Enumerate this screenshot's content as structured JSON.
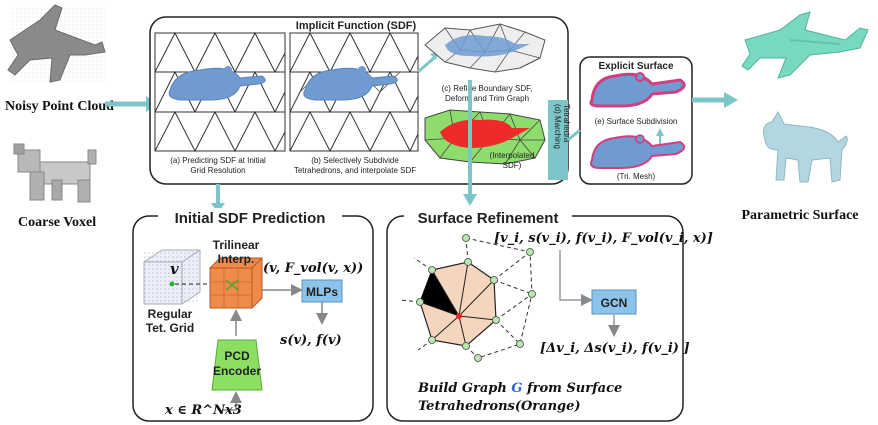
{
  "left": {
    "noisy_label": "Noisy Point Cloud",
    "coarse_label": "Coarse Voxel"
  },
  "right": {
    "parametric_label": "Parametric Surface"
  },
  "implicit": {
    "title": "Implicit Function (SDF)",
    "cap_a_1": "(a) Predicting SDF at Initial",
    "cap_a_2": "Grid Resolution",
    "cap_b_1": "(b) Selectively Subdivide",
    "cap_b_2": "Tetrahedrons, and interpolate SDF",
    "cap_c_1": "(c) Refine Boundary SDF,",
    "cap_c_2": "Deform and Trim Graph",
    "cap_interp_1": "(Interpolated",
    "cap_interp_2": "SDF)"
  },
  "marching": {
    "label_1": "(d) Marching",
    "label_2": "Tetrahedra"
  },
  "explicit": {
    "title": "Explicit Surface",
    "cap_e": "(e) Surface Subdivision",
    "cap_mesh": "(Tri. Mesh)"
  },
  "initial_sdf": {
    "title": "Initial SDF Prediction",
    "v_label": "v",
    "trilinear_1": "Trilinear",
    "trilinear_2": "Interp.",
    "feature": "(v, F_vol(v, x))",
    "mlps": "MLPs",
    "regular_1": "Regular",
    "regular_2": "Tet. Grid",
    "output": "s(v), f(v)",
    "pcd_1": "PCD",
    "pcd_2": "Encoder",
    "input": "x ∈ R^Nx3"
  },
  "surface_refinement": {
    "title": "Surface Refinement",
    "input_feature": "[v_i, s(v_i), f(v_i), F_vol(v_i, x)]",
    "gcn": "GCN",
    "output": "[Δv_i, Δs(v_i), f(v_i) ]",
    "caption_1_a": "Build Graph ",
    "caption_1_g": "G",
    "caption_1_b": " from Surface",
    "caption_2": "Tetrahedrons(Orange)"
  },
  "colors": {
    "arrow_teal": "#7cc6c9",
    "blob_blue": "#6f9bd1",
    "orange_cube": "#f08a4b",
    "pcd_green": "#8ddf63",
    "box_blue": "#8cc3ea",
    "hex_orange": "#f5d5bd",
    "mesh_green": "#8edd6c",
    "sdf_red": "#ee2a2a",
    "model_teal": "#78d8c0",
    "model_lightblue": "#b3d7e0",
    "mesh_magenta": "#d04080",
    "g_blue": "#3060d0"
  }
}
